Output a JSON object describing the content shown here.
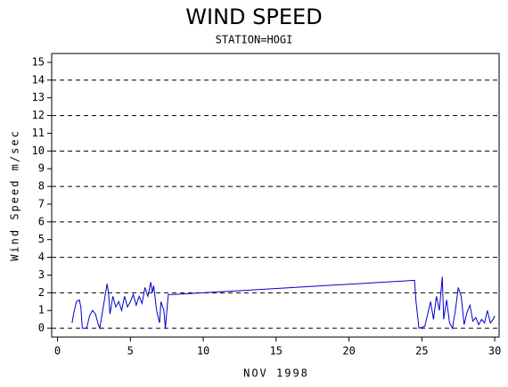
{
  "chart_data": {
    "type": "line",
    "title": "WIND SPEED",
    "subtitle": "STATION=HOGI",
    "x_label": "NOV 1998",
    "y_label": "Wind Speed m/sec",
    "x": [
      1.0,
      1.1,
      1.3,
      1.5,
      1.6,
      1.7,
      2.0,
      2.2,
      2.4,
      2.6,
      2.8,
      2.9,
      3.0,
      3.2,
      3.4,
      3.5,
      3.6,
      3.8,
      4.0,
      4.2,
      4.4,
      4.6,
      4.8,
      5.0,
      5.2,
      5.4,
      5.6,
      5.8,
      6.0,
      6.2,
      6.4,
      6.5,
      6.6,
      6.8,
      7.0,
      7.1,
      7.3,
      7.4,
      7.6,
      8.0,
      9.0,
      24.5,
      24.6,
      24.8,
      25.2,
      25.4,
      25.6,
      25.8,
      26.0,
      26.2,
      26.4,
      26.5,
      26.7,
      26.9,
      27.1,
      27.3,
      27.5,
      27.7,
      27.9,
      28.1,
      28.3,
      28.5,
      28.7,
      28.9,
      29.1,
      29.3,
      29.5,
      29.7,
      29.9,
      30.0
    ],
    "series": [
      {
        "color": "#0000cc",
        "values": [
          0.3,
          0.8,
          1.5,
          1.6,
          1.2,
          0,
          0,
          0.7,
          1.0,
          0.8,
          0.2,
          0,
          0.5,
          1.5,
          2.5,
          2.0,
          0.8,
          1.8,
          1.2,
          1.5,
          1.0,
          1.8,
          1.2,
          1.5,
          1.9,
          1.3,
          1.8,
          1.4,
          2.3,
          1.8,
          2.6,
          2.0,
          2.4,
          1.0,
          0.3,
          1.5,
          1.0,
          0,
          1.9,
          1.9,
          1.95,
          2.7,
          1.5,
          0,
          0.1,
          0.8,
          1.5,
          0.5,
          1.8,
          1.0,
          2.9,
          0.5,
          1.6,
          0.3,
          0,
          1.0,
          2.3,
          1.8,
          0.2,
          0.9,
          1.3,
          0.4,
          0.6,
          0.2,
          0.5,
          0.3,
          1.0,
          0.3,
          0.5,
          0.7
        ]
      }
    ],
    "xlim": [
      -0.4,
      30.3
    ],
    "xticks": [
      0,
      5,
      10,
      15,
      20,
      25,
      30
    ],
    "ylim": [
      -0.5,
      15.5
    ],
    "yticks": [
      0,
      1,
      2,
      3,
      4,
      5,
      6,
      7,
      8,
      9,
      10,
      11,
      12,
      13,
      14,
      15
    ],
    "ygrid": [
      0,
      2,
      4,
      6,
      8,
      10,
      12,
      14
    ]
  }
}
